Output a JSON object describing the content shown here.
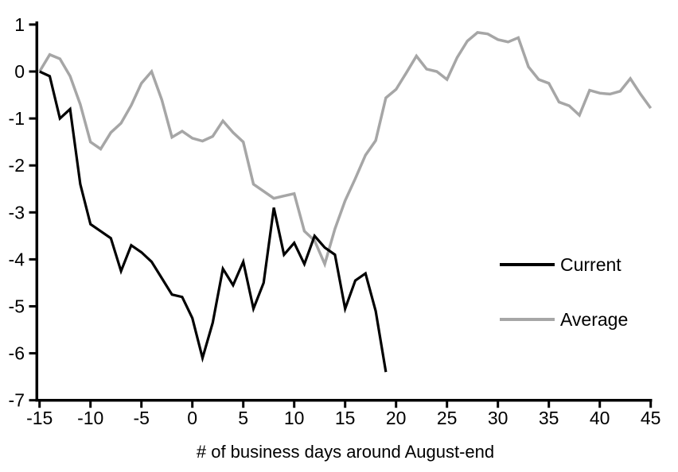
{
  "chart_data": {
    "type": "line",
    "title": "",
    "xlabel": "# of business days around August-end",
    "ylabel": "",
    "xlim": [
      -15,
      45
    ],
    "ylim": [
      -7,
      1
    ],
    "grid": false,
    "legend_position": "right-middle",
    "x_ticks": [
      -15,
      -10,
      -5,
      0,
      5,
      10,
      15,
      20,
      25,
      30,
      35,
      40,
      45
    ],
    "y_ticks": [
      1,
      0,
      -1,
      -2,
      -3,
      -4,
      -5,
      -6,
      -7
    ],
    "colors": {
      "current": "#000000",
      "average": "#a6a6a6",
      "axis": "#000000"
    },
    "series": [
      {
        "name": "Current",
        "color_key": "current",
        "x_start": -15,
        "x_step": 1,
        "values": [
          0,
          -0.1,
          -1.0,
          -0.8,
          -2.4,
          -3.25,
          -3.4,
          -3.55,
          -4.25,
          -3.7,
          -3.85,
          -4.05,
          -4.4,
          -4.75,
          -4.8,
          -5.25,
          -6.1,
          -5.35,
          -4.2,
          -4.55,
          -4.05,
          -5.05,
          -4.5,
          -2.9,
          -3.9,
          -3.65,
          -4.1,
          -3.5,
          -3.75,
          -3.9,
          -5.05,
          -4.45,
          -4.3,
          -5.1,
          -6.4
        ]
      },
      {
        "name": "Average",
        "color_key": "average",
        "x_start": -15,
        "x_step": 1,
        "values": [
          0,
          0.36,
          0.27,
          -0.1,
          -0.7,
          -1.5,
          -1.65,
          -1.3,
          -1.1,
          -0.72,
          -0.25,
          0.0,
          -0.6,
          -1.4,
          -1.27,
          -1.42,
          -1.48,
          -1.38,
          -1.05,
          -1.3,
          -1.5,
          -2.4,
          -2.55,
          -2.7,
          -2.65,
          -2.6,
          -3.4,
          -3.6,
          -4.1,
          -3.35,
          -2.75,
          -2.28,
          -1.78,
          -1.47,
          -0.56,
          -0.38,
          -0.03,
          0.33,
          0.05,
          0.0,
          -0.17,
          0.3,
          0.65,
          0.83,
          0.8,
          0.68,
          0.63,
          0.72,
          0.1,
          -0.17,
          -0.25,
          -0.65,
          -0.73,
          -0.93,
          -0.4,
          -0.46,
          -0.48,
          -0.42,
          -0.15,
          -0.48,
          -0.78
        ]
      }
    ]
  }
}
